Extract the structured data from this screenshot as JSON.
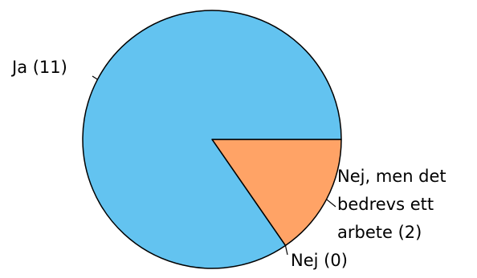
{
  "chart_data": {
    "type": "pie",
    "slices": [
      {
        "label": "Ja (11)",
        "value": 11,
        "color": "#63c3f0"
      },
      {
        "label": "Nej, men det bedrevs ett arbete (2)",
        "label_lines": [
          "Nej, men det",
          "bedrevs ett",
          "arbete (2)"
        ],
        "value": 2,
        "color": "#ffa366"
      },
      {
        "label": "Nej (0)",
        "value": 0,
        "color": "#d9d9d9"
      }
    ]
  }
}
